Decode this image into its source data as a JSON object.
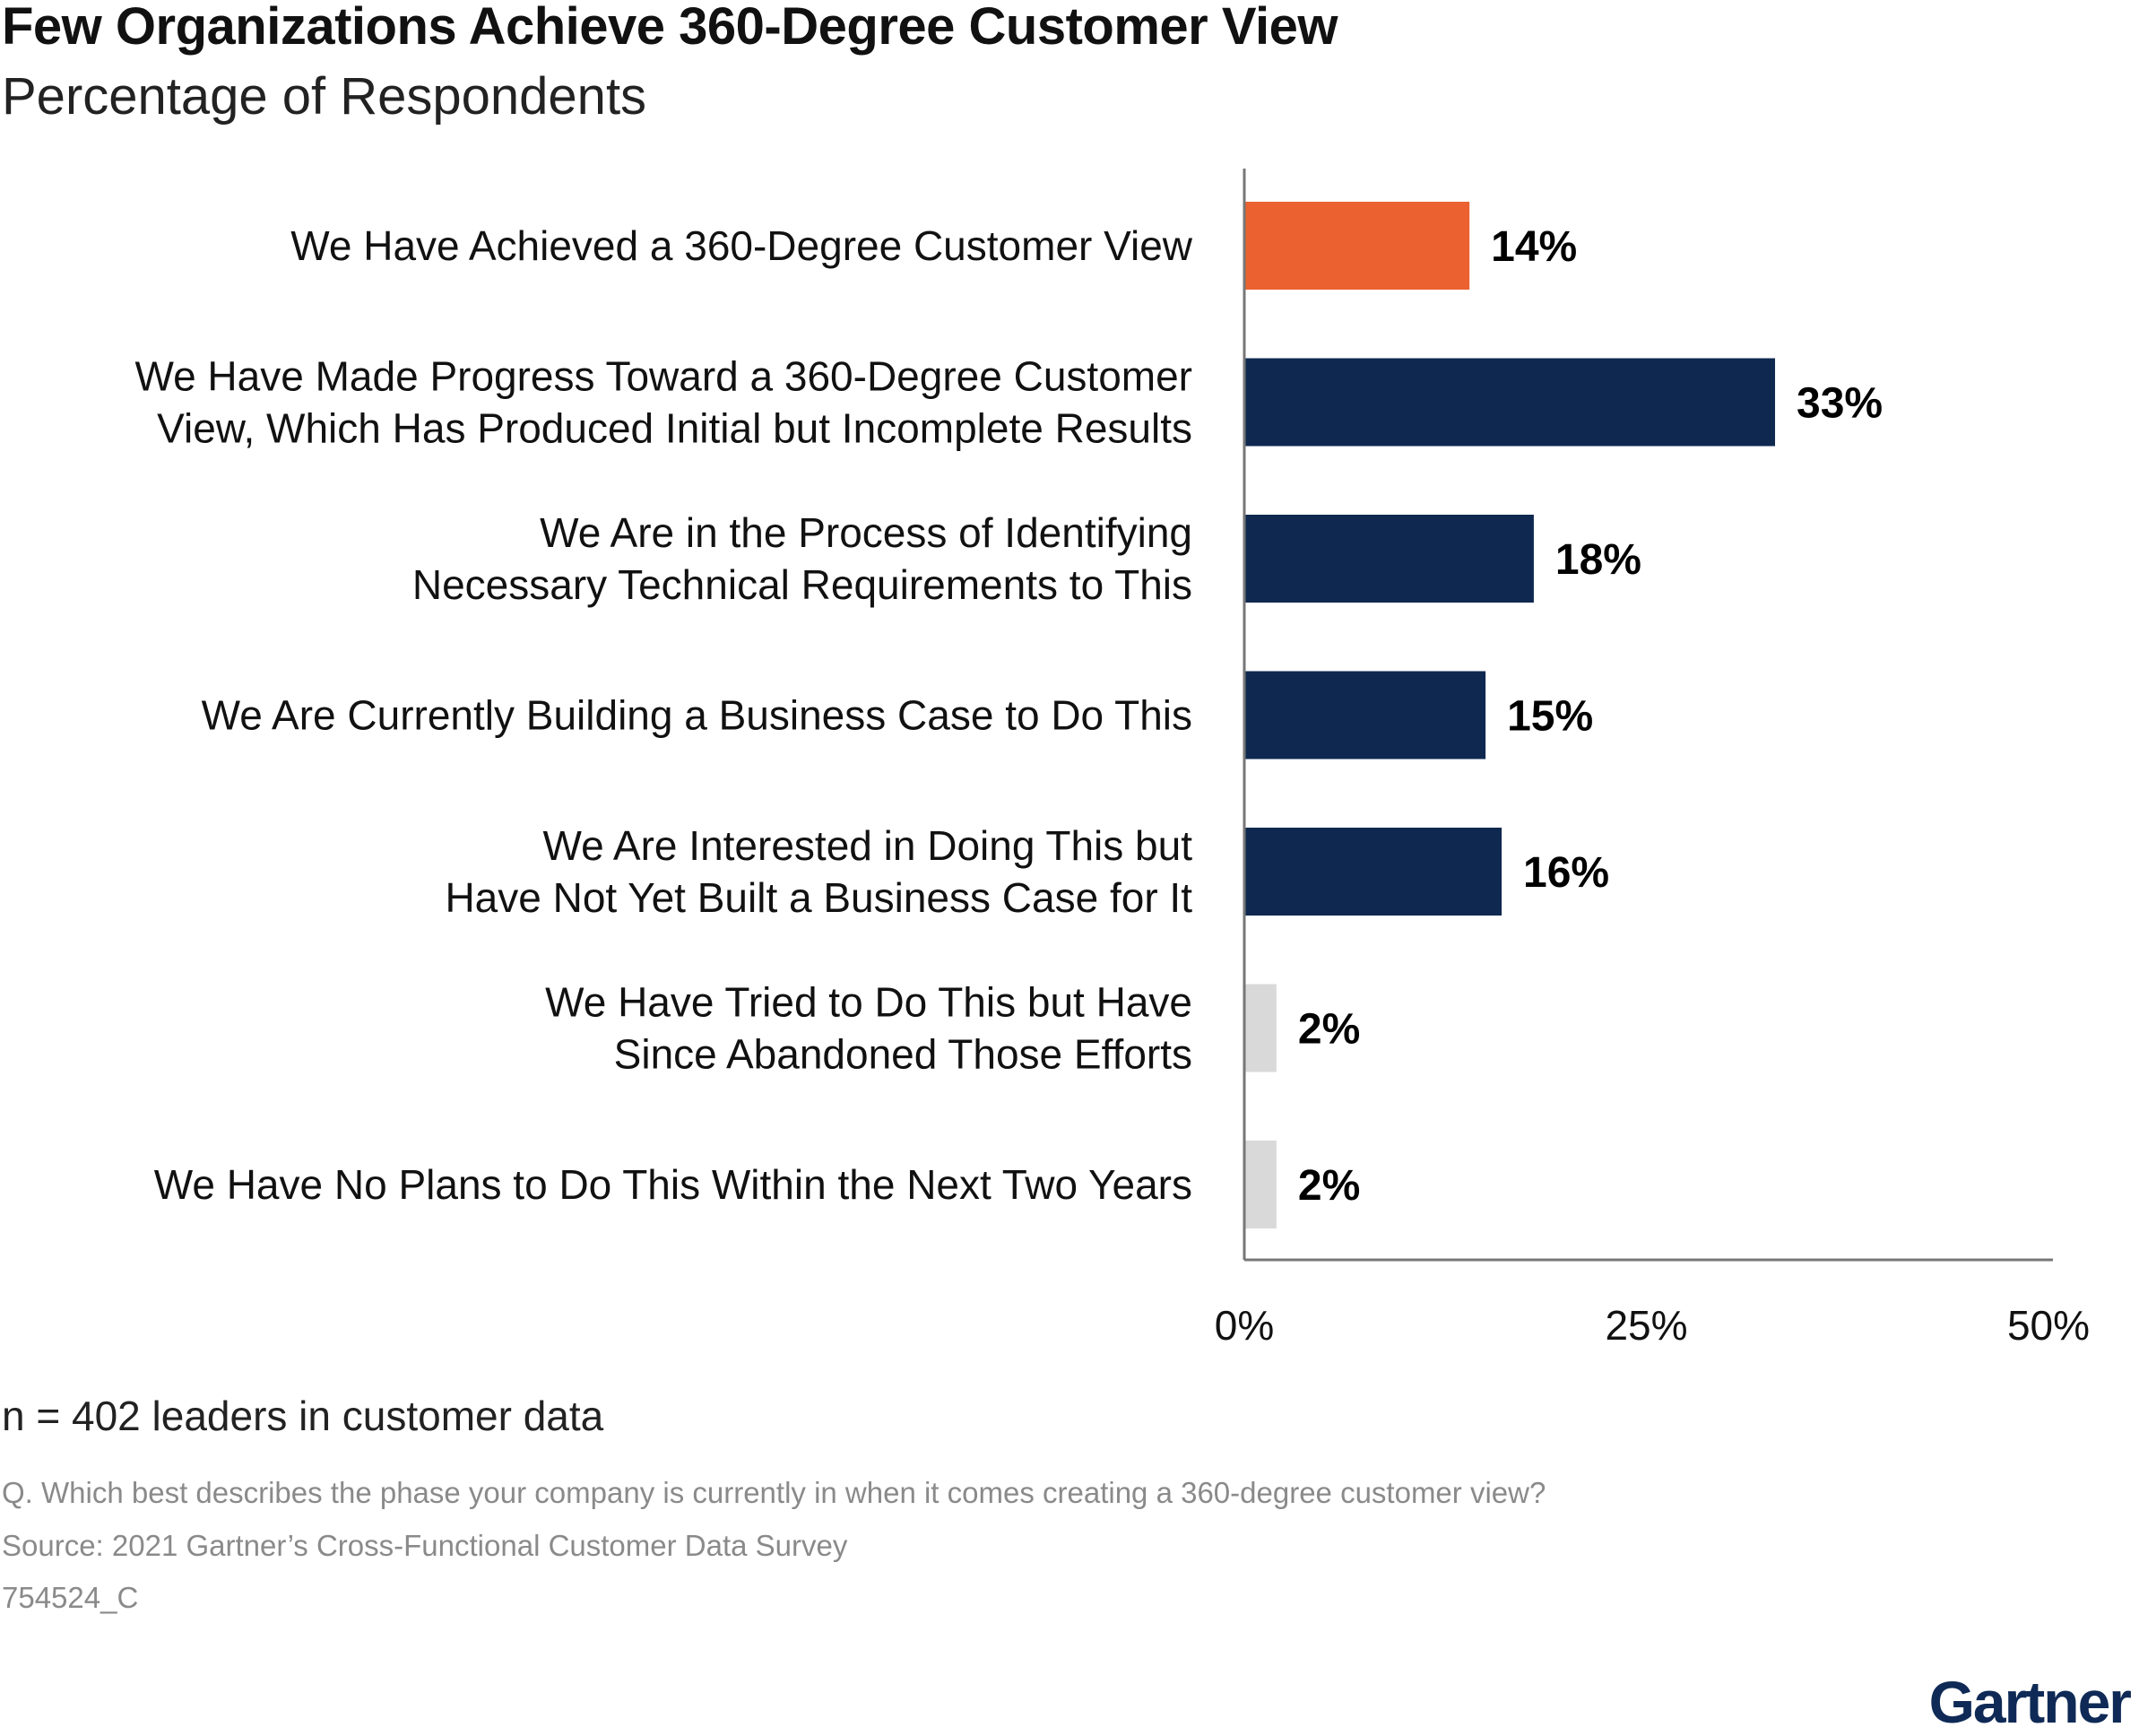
{
  "chart_data": {
    "type": "bar",
    "orientation": "horizontal",
    "title": "Few Organizations Achieve 360-Degree Customer View",
    "subtitle": "Percentage of Respondents",
    "categories": [
      [
        "We Have Achieved a 360-Degree Customer View"
      ],
      [
        "We Have Made Progress Toward a 360-Degree Customer",
        "View, Which Has Produced Initial but Incomplete Results"
      ],
      [
        "We Are in the Process of Identifying",
        "Necessary Technical Requirements to This"
      ],
      [
        "We Are Currently Building a Business Case to Do This"
      ],
      [
        "We Are Interested in Doing This but",
        "Have Not Yet Built a Business Case for It"
      ],
      [
        "We Have Tried to Do This but Have",
        "Since Abandoned Those Efforts"
      ],
      [
        "We Have No Plans to Do This Within the Next Two Years"
      ]
    ],
    "values": [
      14,
      33,
      18,
      15,
      16,
      2,
      2
    ],
    "data_labels": [
      "14%",
      "33%",
      "18%",
      "15%",
      "16%",
      "2%",
      "2%"
    ],
    "bar_colors": [
      "#eb6130",
      "#0f2850",
      "#0f2850",
      "#0f2850",
      "#0f2850",
      "#d9d9d9",
      "#d9d9d9"
    ],
    "xlim": [
      0,
      50
    ],
    "x_ticks": [
      "0%",
      "25%",
      "50%"
    ],
    "grid": false,
    "xlabel": "",
    "ylabel": ""
  },
  "footer": {
    "n": "n = 402 leaders in customer data",
    "question": "Q. Which best describes the phase your company is currently in when it comes creating a 360-degree customer view?",
    "source": "Source: 2021 Gartner’s Cross-Functional Customer Data Survey",
    "id": "754524_C"
  },
  "logo": "Gartner"
}
